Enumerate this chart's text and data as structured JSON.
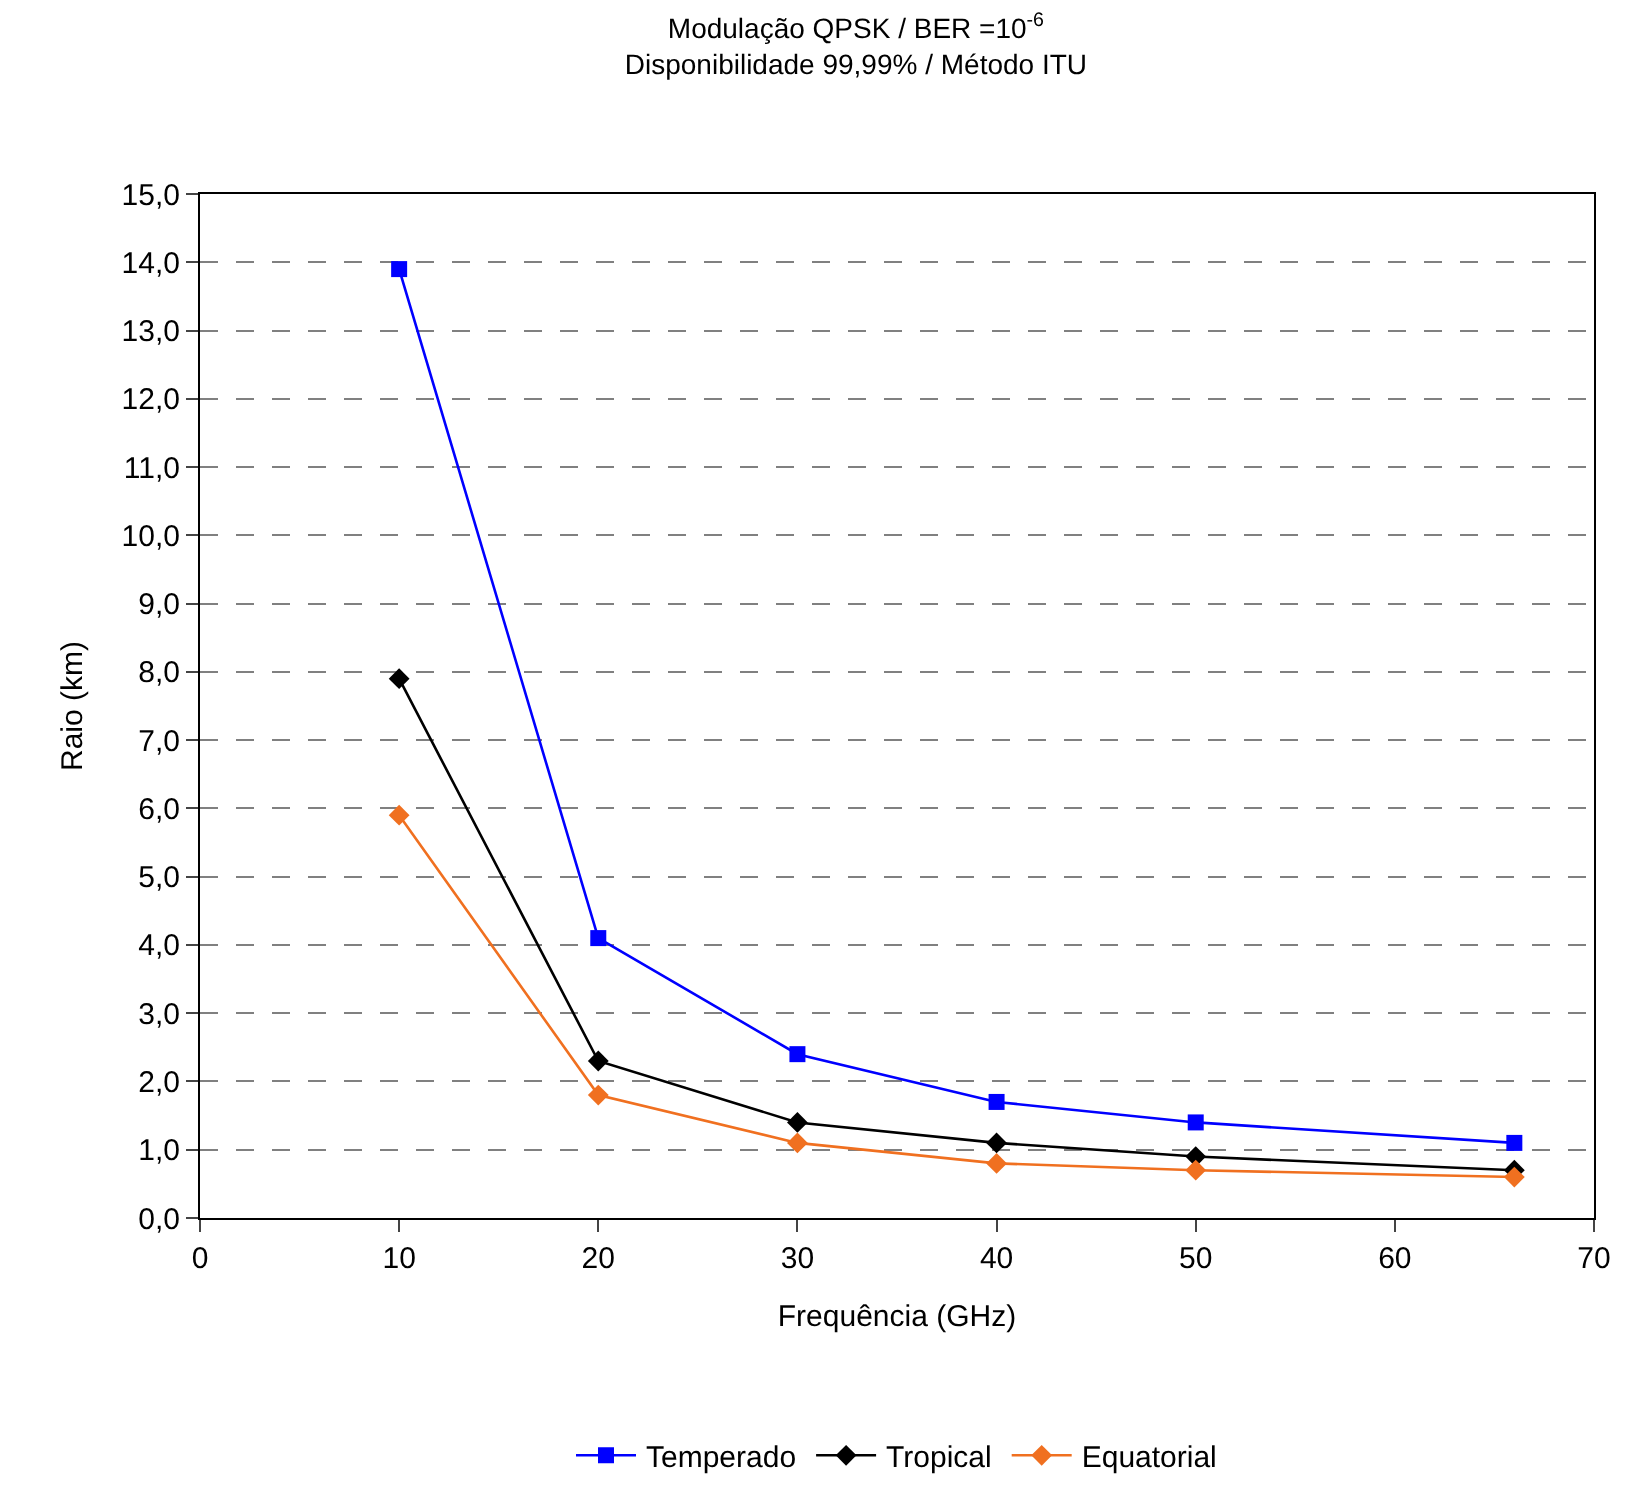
{
  "chart_data": {
    "type": "line",
    "title": "Modulação QPSK / BER =10$^{-6}$",
    "subtitle": "Disponibilidade 99,99% / Método ITU",
    "xlabel": "Frequência (GHz)",
    "ylabel": "Raio (km)",
    "x": [
      10,
      20,
      30,
      40,
      50,
      66
    ],
    "series": [
      {
        "name": "Temperado",
        "color": "#0000ff",
        "marker": "square",
        "values": [
          13.9,
          4.1,
          2.4,
          1.7,
          1.4,
          1.1
        ]
      },
      {
        "name": "Tropical",
        "color": "#000000",
        "marker": "diamond",
        "values": [
          7.9,
          2.3,
          1.4,
          1.1,
          0.9,
          0.7
        ]
      },
      {
        "name": "Equatorial",
        "color": "#f07020",
        "marker": "diamond",
        "values": [
          5.9,
          1.8,
          1.1,
          0.8,
          0.7,
          0.6
        ]
      }
    ],
    "xlim": [
      0,
      70
    ],
    "xticks": [
      0,
      10,
      20,
      30,
      40,
      50,
      60,
      70
    ],
    "ylim": [
      0,
      15
    ],
    "yticks": [
      {
        "value": 0,
        "label": "0,0"
      },
      {
        "value": 1,
        "label": "1,0"
      },
      {
        "value": 2,
        "label": "2,0"
      },
      {
        "value": 3,
        "label": "3,0"
      },
      {
        "value": 4,
        "label": "4,0"
      },
      {
        "value": 5,
        "label": "5,0"
      },
      {
        "value": 6,
        "label": "6,0"
      },
      {
        "value": 7,
        "label": "7,0"
      },
      {
        "value": 8,
        "label": "8,0"
      },
      {
        "value": 9,
        "label": "9,0"
      },
      {
        "value": 10,
        "label": "10,0"
      },
      {
        "value": 11,
        "label": "11,0"
      },
      {
        "value": 12,
        "label": "12,0"
      },
      {
        "value": 13,
        "label": "13,0"
      },
      {
        "value": 14,
        "label": "14,0"
      },
      {
        "value": 15,
        "label": "15,0"
      }
    ],
    "grid": "y",
    "legend": "bottom",
    "line_style": "solid"
  }
}
